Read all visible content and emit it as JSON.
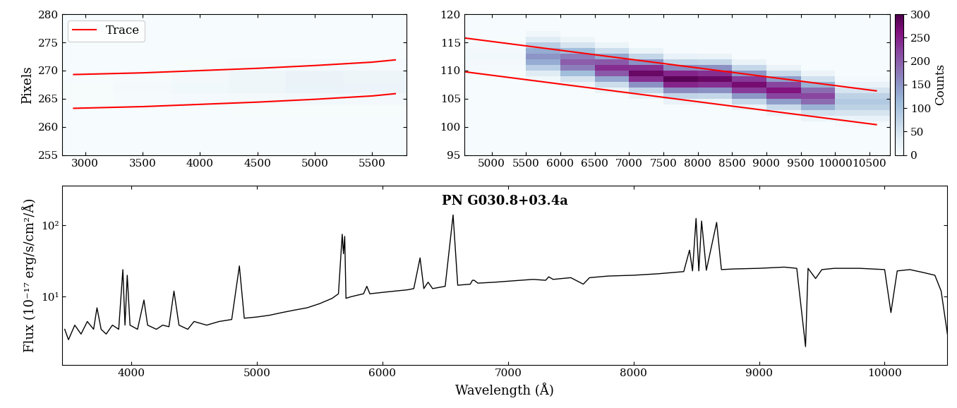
{
  "chart_data": [
    {
      "type": "heatmap",
      "ylabel": "Pixels",
      "xlim": [
        2800,
        5800
      ],
      "xticks": [
        3000,
        3500,
        4000,
        4500,
        5000,
        5500
      ],
      "ylim": [
        255,
        280
      ],
      "yticks": [
        255,
        260,
        265,
        270,
        275,
        280
      ],
      "legend": "upper left",
      "color_range": [
        0,
        300
      ],
      "x_edges": [
        2800,
        3250,
        3750,
        4250,
        4750,
        5250,
        5800
      ],
      "y_edges": [
        255,
        262,
        264,
        266,
        268,
        270,
        272,
        275,
        280
      ],
      "cells": [
        [
          2,
          2,
          2,
          2,
          2,
          2
        ],
        [
          2,
          2,
          2,
          3,
          3,
          3
        ],
        [
          3,
          4,
          6,
          8,
          10,
          9
        ],
        [
          3,
          5,
          10,
          15,
          22,
          18
        ],
        [
          2,
          4,
          8,
          14,
          20,
          17
        ],
        [
          2,
          2,
          3,
          5,
          6,
          6
        ],
        [
          2,
          2,
          2,
          2,
          2,
          2
        ],
        [
          2,
          2,
          2,
          2,
          2,
          2
        ]
      ],
      "series": [
        {
          "name": "Trace",
          "color": "red",
          "line_style": "solid",
          "x": [
            2900,
            3500,
            4000,
            4500,
            5000,
            5500,
            5700
          ],
          "values": [
            269.3,
            269.6,
            270.0,
            270.4,
            270.9,
            271.5,
            271.9
          ]
        },
        {
          "name": "Trace",
          "color": "red",
          "line_style": "solid",
          "x": [
            2900,
            3500,
            4000,
            4500,
            5000,
            5500,
            5700
          ],
          "values": [
            263.3,
            263.6,
            264.0,
            264.4,
            264.9,
            265.5,
            265.9
          ]
        }
      ]
    },
    {
      "type": "heatmap",
      "xlim": [
        4600,
        10800
      ],
      "xticks": [
        5000,
        5500,
        6000,
        6500,
        7000,
        7500,
        8000,
        8500,
        9000,
        9500,
        10000,
        10500
      ],
      "ylim": [
        95,
        120
      ],
      "yticks": [
        95,
        100,
        105,
        110,
        115,
        120
      ],
      "colorbar": {
        "label": "Counts",
        "range": [
          0,
          300
        ],
        "ticks": [
          0,
          50,
          100,
          150,
          200,
          250,
          300
        ]
      },
      "x_edges": [
        4600,
        5500,
        6000,
        6500,
        7000,
        7500,
        8000,
        8500,
        9000,
        9500,
        10000,
        10800
      ],
      "y_edges": [
        95,
        96,
        97,
        98,
        99,
        100,
        101,
        102,
        103,
        104,
        105,
        106,
        107,
        108,
        109,
        110,
        111,
        112,
        113,
        114,
        115,
        116,
        117,
        118,
        119,
        120
      ],
      "cells": [
        [
          2,
          2,
          2,
          2,
          2,
          2,
          2,
          2,
          2,
          2,
          2
        ],
        [
          2,
          2,
          2,
          2,
          2,
          2,
          2,
          2,
          2,
          2,
          2
        ],
        [
          2,
          2,
          2,
          2,
          2,
          2,
          2,
          2,
          2,
          2,
          2
        ],
        [
          2,
          2,
          2,
          2,
          2,
          2,
          2,
          2,
          2,
          2,
          2
        ],
        [
          2,
          2,
          2,
          2,
          2,
          2,
          2,
          2,
          2,
          2,
          2
        ],
        [
          2,
          2,
          2,
          2,
          2,
          2,
          2,
          2,
          2,
          2,
          7
        ],
        [
          2,
          2,
          2,
          2,
          2,
          2,
          2,
          2,
          2,
          18,
          23
        ],
        [
          2,
          2,
          2,
          2,
          2,
          2,
          2,
          2,
          21,
          55,
          50
        ],
        [
          2,
          2,
          2,
          2,
          2,
          2,
          2,
          22,
          65,
          121,
          77
        ],
        [
          2,
          2,
          2,
          2,
          2,
          23,
          22,
          68,
          143,
          187,
          90
        ],
        [
          2,
          2,
          2,
          2,
          22,
          73,
          70,
          149,
          221,
          220,
          77
        ],
        [
          2,
          2,
          2,
          19,
          70,
          160,
          154,
          230,
          260,
          187,
          50
        ],
        [
          2,
          2,
          16,
          60,
          154,
          247,
          238,
          270,
          221,
          121,
          23
        ],
        [
          2,
          12,
          50,
          132,
          238,
          290,
          280,
          230,
          143,
          55,
          7
        ],
        [
          3,
          38,
          110,
          204,
          280,
          247,
          238,
          149,
          65,
          18,
          2
        ],
        [
          6,
          83,
          170,
          240,
          238,
          160,
          154,
          68,
          21,
          2,
          2
        ],
        [
          9,
          128,
          200,
          204,
          154,
          73,
          70,
          22,
          2,
          2,
          2
        ],
        [
          10,
          150,
          170,
          132,
          70,
          23,
          22,
          2,
          2,
          2,
          2
        ],
        [
          9,
          128,
          110,
          60,
          22,
          2,
          2,
          2,
          2,
          2,
          2
        ],
        [
          6,
          83,
          50,
          19,
          2,
          2,
          2,
          2,
          2,
          2,
          2
        ],
        [
          3,
          38,
          16,
          2,
          2,
          2,
          2,
          2,
          2,
          2,
          2
        ],
        [
          2,
          12,
          2,
          2,
          2,
          2,
          2,
          2,
          2,
          2,
          2
        ],
        [
          2,
          2,
          2,
          2,
          2,
          2,
          2,
          2,
          2,
          2,
          2
        ],
        [
          2,
          2,
          2,
          2,
          2,
          2,
          2,
          2,
          2,
          2,
          2
        ],
        [
          2,
          2,
          2,
          2,
          2,
          2,
          2,
          2,
          2,
          2,
          2
        ]
      ],
      "series": [
        {
          "name": "Trace",
          "color": "red",
          "line_style": "solid",
          "x": [
            4600,
            10600
          ],
          "values": [
            115.8,
            106.4
          ]
        },
        {
          "name": "Trace",
          "color": "red",
          "line_style": "solid",
          "x": [
            4600,
            10600
          ],
          "values": [
            109.8,
            100.4
          ]
        }
      ]
    },
    {
      "type": "line",
      "title": "PN G030.8+03.4a",
      "xlabel": "Wavelength (Å)",
      "ylabel": "Flux (10⁻¹⁷ erg/s/cm²/Å)",
      "log": "y",
      "xlim": [
        3450,
        10500
      ],
      "xticks": [
        4000,
        5000,
        6000,
        7000,
        8000,
        9000,
        10000
      ],
      "ylim": [
        1.1,
        360
      ],
      "yticks": [
        {
          "value": 10,
          "label": "10¹"
        },
        {
          "value": 100,
          "label": "10²"
        }
      ],
      "series": [
        {
          "color": "black",
          "line_style": "solid",
          "x": [
            3470,
            3500,
            3550,
            3600,
            3650,
            3700,
            3727,
            3760,
            3800,
            3850,
            3900,
            3933,
            3950,
            3968,
            3990,
            4050,
            4101,
            4130,
            4200,
            4250,
            4300,
            4340,
            4380,
            4450,
            4500,
            4600,
            4700,
            4800,
            4861,
            4900,
            5000,
            5100,
            5200,
            5300,
            5400,
            5500,
            5600,
            5650,
            5680,
            5690,
            5700,
            5710,
            5750,
            5800,
            5850,
            5876,
            5900,
            6000,
            6100,
            6200,
            6250,
            6300,
            6330,
            6364,
            6400,
            6500,
            6563,
            6600,
            6700,
            6717,
            6731,
            6760,
            6900,
            7000,
            7100,
            7200,
            7300,
            7325,
            7360,
            7500,
            7600,
            7650,
            7800,
            8000,
            8200,
            8400,
            8446,
            8470,
            8498,
            8520,
            8542,
            8580,
            8662,
            8700,
            8800,
            9000,
            9200,
            9300,
            9370,
            9390,
            9450,
            9500,
            9600,
            9800,
            10000,
            10050,
            10100,
            10200,
            10300,
            10400,
            10450,
            10500
          ],
          "values": [
            3.5,
            2.5,
            4,
            3,
            4.5,
            3.5,
            7,
            3.5,
            3,
            4,
            3.5,
            24,
            4,
            20,
            4,
            3.5,
            9,
            4,
            3.5,
            4,
            3.8,
            12,
            4,
            3.5,
            4.5,
            4,
            4.5,
            4.8,
            27,
            5,
            5.2,
            5.5,
            6,
            6.5,
            7,
            8,
            9.5,
            11,
            75,
            40,
            70,
            9.5,
            10,
            10.5,
            11,
            14,
            11,
            11.5,
            12,
            12.5,
            13,
            35,
            13,
            16,
            13,
            14,
            140,
            14.5,
            15,
            17,
            17,
            15.5,
            16,
            16.5,
            17,
            17.5,
            17,
            19,
            17.5,
            18.5,
            15,
            18.5,
            19.5,
            20,
            21,
            22.5,
            45,
            23,
            125,
            23,
            115,
            23.5,
            110,
            24,
            24.5,
            25,
            26,
            25,
            2,
            25,
            18,
            24,
            25,
            25,
            24,
            6,
            23,
            24,
            22,
            20,
            12,
            3
          ]
        }
      ]
    }
  ]
}
